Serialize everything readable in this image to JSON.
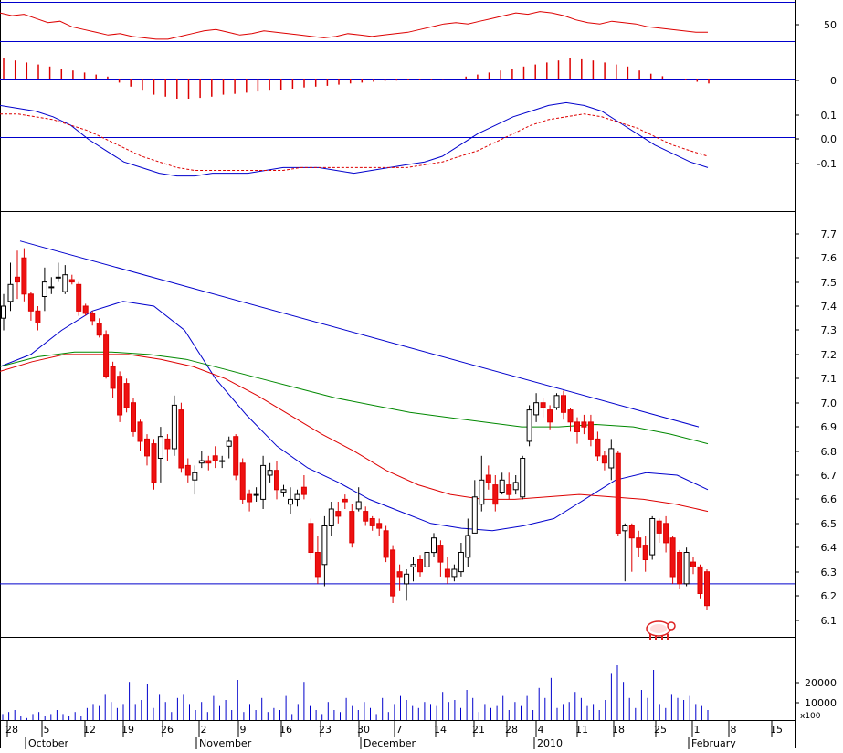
{
  "chart_data": {
    "type": "candlestick",
    "panels": {
      "rsi": {
        "ticks": [
          "50"
        ],
        "series": [
          {
            "values": [
              62,
              60,
              61,
              58,
              55,
              56,
              52,
              50,
              48,
              46,
              47,
              45,
              44,
              43,
              43,
              45,
              47,
              49,
              50,
              48,
              46,
              47,
              49,
              48,
              47,
              46,
              45,
              44,
              45,
              47,
              46,
              45,
              46,
              47,
              48,
              50,
              52,
              54,
              55,
              54,
              56,
              58,
              60,
              62,
              61,
              63,
              62,
              60,
              57,
              55,
              54,
              56,
              55,
              54,
              52,
              51,
              50,
              49,
              48,
              48
            ]
          }
        ]
      },
      "macd_histogram": {
        "ticks": [
          "0"
        ],
        "values": [
          0.05,
          0.045,
          0.04,
          0.035,
          0.03,
          0.025,
          0.02,
          0.015,
          0.01,
          0.005,
          -0.01,
          -0.02,
          -0.03,
          -0.04,
          -0.045,
          -0.05,
          -0.05,
          -0.048,
          -0.045,
          -0.04,
          -0.038,
          -0.035,
          -0.032,
          -0.03,
          -0.028,
          -0.025,
          -0.022,
          -0.02,
          -0.018,
          -0.015,
          -0.012,
          -0.01,
          -0.008,
          -0.006,
          -0.005,
          -0.004,
          -0.003,
          -0.002,
          -0.001,
          0.0,
          0.005,
          0.01,
          0.015,
          0.02,
          0.025,
          0.03,
          0.035,
          0.04,
          0.045,
          0.05,
          0.048,
          0.045,
          0.04,
          0.035,
          0.03,
          0.02,
          0.012,
          0.006,
          0.0,
          -0.004,
          -0.008,
          -0.012
        ]
      },
      "macd": {
        "ticks": [
          "0.1",
          "0.0",
          "-0.1"
        ],
        "series": [
          {
            "style": "solid",
            "color": "#0000cc",
            "values": [
              0.12,
              0.11,
              0.1,
              0.08,
              0.05,
              0.0,
              -0.04,
              -0.08,
              -0.1,
              -0.12,
              -0.13,
              -0.13,
              -0.12,
              -0.12,
              -0.12,
              -0.11,
              -0.1,
              -0.1,
              -0.1,
              -0.11,
              -0.12,
              -0.11,
              -0.1,
              -0.09,
              -0.08,
              -0.06,
              -0.02,
              0.02,
              0.05,
              0.08,
              0.1,
              0.12,
              0.13,
              0.12,
              0.1,
              0.06,
              0.02,
              -0.02,
              -0.05,
              -0.08,
              -0.1
            ]
          },
          {
            "style": "dashed",
            "color": "#dd0000",
            "values": [
              0.09,
              0.09,
              0.08,
              0.07,
              0.05,
              0.03,
              0.0,
              -0.03,
              -0.06,
              -0.08,
              -0.1,
              -0.11,
              -0.11,
              -0.11,
              -0.11,
              -0.11,
              -0.11,
              -0.1,
              -0.1,
              -0.1,
              -0.1,
              -0.1,
              -0.1,
              -0.1,
              -0.09,
              -0.08,
              -0.06,
              -0.04,
              -0.01,
              0.02,
              0.05,
              0.07,
              0.08,
              0.09,
              0.08,
              0.06,
              0.04,
              0.01,
              -0.02,
              -0.04,
              -0.06
            ]
          }
        ]
      },
      "price": {
        "ticks": [
          "7.7",
          "7.6",
          "7.5",
          "7.4",
          "7.3",
          "7.2",
          "7.1",
          "7.0",
          "6.9",
          "6.8",
          "6.7",
          "6.6",
          "6.5",
          "6.4",
          "6.3",
          "6.2",
          "6.1"
        ],
        "ylim": [
          6.03,
          7.79
        ],
        "candles": [
          [
            7.35,
            7.4,
            7.3,
            7.45
          ],
          [
            7.42,
            7.49,
            7.38,
            7.58
          ],
          [
            7.52,
            7.5,
            7.43,
            7.63
          ],
          [
            7.6,
            7.45,
            7.42,
            7.64
          ],
          [
            7.45,
            7.38,
            7.34,
            7.46
          ],
          [
            7.38,
            7.33,
            7.3,
            7.4
          ],
          [
            7.44,
            7.5,
            7.38,
            7.56
          ],
          [
            7.48,
            7.48,
            7.45,
            7.52
          ],
          [
            7.52,
            7.52,
            7.5,
            7.58
          ],
          [
            7.46,
            7.53,
            7.45,
            7.57
          ],
          [
            7.51,
            7.5,
            7.49,
            7.53
          ],
          [
            7.49,
            7.38,
            7.36,
            7.5
          ],
          [
            7.4,
            7.37,
            7.36,
            7.41
          ],
          [
            7.37,
            7.34,
            7.32,
            7.38
          ],
          [
            7.33,
            7.28,
            7.27,
            7.35
          ],
          [
            7.28,
            7.11,
            7.1,
            7.3
          ],
          [
            7.15,
            7.06,
            7.02,
            7.17
          ],
          [
            7.11,
            6.95,
            6.92,
            7.13
          ],
          [
            7.08,
            6.98,
            6.96,
            7.1
          ],
          [
            7.0,
            6.88,
            6.86,
            7.02
          ],
          [
            6.92,
            6.84,
            6.8,
            6.93
          ],
          [
            6.85,
            6.78,
            6.74,
            6.87
          ],
          [
            6.83,
            6.67,
            6.64,
            6.85
          ],
          [
            6.77,
            6.86,
            6.67,
            6.9
          ],
          [
            6.85,
            6.81,
            6.76,
            6.87
          ],
          [
            6.81,
            6.99,
            6.78,
            7.03
          ],
          [
            6.97,
            6.73,
            6.71,
            7.0
          ],
          [
            6.74,
            6.7,
            6.67,
            6.77
          ],
          [
            6.68,
            6.71,
            6.62,
            6.74
          ],
          [
            6.75,
            6.76,
            6.73,
            6.8
          ],
          [
            6.76,
            6.75,
            6.72,
            6.78
          ],
          [
            6.78,
            6.76,
            6.73,
            6.82
          ],
          [
            6.76,
            6.76,
            6.73,
            6.78
          ],
          [
            6.82,
            6.84,
            6.77,
            6.86
          ],
          [
            6.86,
            6.7,
            6.68,
            6.87
          ],
          [
            6.75,
            6.6,
            6.58,
            6.77
          ],
          [
            6.62,
            6.59,
            6.55,
            6.64
          ],
          [
            6.62,
            6.62,
            6.59,
            6.65
          ],
          [
            6.6,
            6.74,
            6.56,
            6.78
          ],
          [
            6.7,
            6.72,
            6.67,
            6.75
          ],
          [
            6.72,
            6.64,
            6.6,
            6.76
          ],
          [
            6.63,
            6.64,
            6.61,
            6.66
          ],
          [
            6.58,
            6.6,
            6.54,
            6.65
          ],
          [
            6.6,
            6.62,
            6.57,
            6.64
          ],
          [
            6.65,
            6.62,
            6.6,
            6.7
          ],
          [
            6.5,
            6.38,
            6.35,
            6.52
          ],
          [
            6.38,
            6.28,
            6.25,
            6.45
          ],
          [
            6.33,
            6.49,
            6.24,
            6.53
          ],
          [
            6.49,
            6.56,
            6.45,
            6.59
          ],
          [
            6.55,
            6.53,
            6.5,
            6.59
          ],
          [
            6.6,
            6.59,
            6.56,
            6.62
          ],
          [
            6.55,
            6.42,
            6.4,
            6.58
          ],
          [
            6.56,
            6.59,
            6.55,
            6.65
          ],
          [
            6.55,
            6.51,
            6.49,
            6.57
          ],
          [
            6.52,
            6.49,
            6.47,
            6.53
          ],
          [
            6.5,
            6.48,
            6.45,
            6.52
          ],
          [
            6.47,
            6.36,
            6.34,
            6.49
          ],
          [
            6.39,
            6.2,
            6.17,
            6.41
          ],
          [
            6.3,
            6.28,
            6.22,
            6.33
          ],
          [
            6.25,
            6.29,
            6.18,
            6.31
          ],
          [
            6.32,
            6.33,
            6.26,
            6.36
          ],
          [
            6.35,
            6.3,
            6.28,
            6.37
          ],
          [
            6.32,
            6.38,
            6.28,
            6.4
          ],
          [
            6.38,
            6.44,
            6.36,
            6.46
          ],
          [
            6.41,
            6.34,
            6.28,
            6.43
          ],
          [
            6.31,
            6.28,
            6.25,
            6.36
          ],
          [
            6.28,
            6.31,
            6.26,
            6.33
          ],
          [
            6.3,
            6.38,
            6.28,
            6.42
          ],
          [
            6.36,
            6.45,
            6.32,
            6.52
          ],
          [
            6.46,
            6.61,
            6.46,
            6.68
          ],
          [
            6.58,
            6.68,
            6.55,
            6.78
          ],
          [
            6.7,
            6.67,
            6.64,
            6.74
          ],
          [
            6.66,
            6.58,
            6.55,
            6.7
          ],
          [
            6.63,
            6.68,
            6.62,
            6.71
          ],
          [
            6.66,
            6.62,
            6.6,
            6.71
          ],
          [
            6.64,
            6.67,
            6.62,
            6.7
          ],
          [
            6.61,
            6.77,
            6.6,
            6.78
          ],
          [
            6.84,
            6.97,
            6.82,
            6.99
          ],
          [
            6.95,
            7.0,
            6.92,
            7.04
          ],
          [
            7.0,
            6.98,
            6.94,
            7.02
          ],
          [
            6.97,
            6.92,
            6.89,
            6.99
          ],
          [
            6.98,
            7.03,
            6.97,
            7.04
          ],
          [
            7.03,
            6.96,
            6.93,
            7.05
          ],
          [
            6.97,
            6.92,
            6.88,
            6.98
          ],
          [
            6.92,
            6.88,
            6.83,
            6.94
          ],
          [
            6.92,
            6.9,
            6.87,
            6.95
          ],
          [
            6.92,
            6.85,
            6.82,
            6.95
          ],
          [
            6.85,
            6.78,
            6.76,
            6.88
          ],
          [
            6.78,
            6.75,
            6.72,
            6.8
          ],
          [
            6.73,
            6.81,
            6.68,
            6.85
          ],
          [
            6.79,
            6.46,
            6.45,
            6.8
          ],
          [
            6.47,
            6.49,
            6.26,
            6.5
          ],
          [
            6.49,
            6.44,
            6.3,
            6.5
          ],
          [
            6.44,
            6.4,
            6.36,
            6.47
          ],
          [
            6.41,
            6.35,
            6.3,
            6.45
          ],
          [
            6.37,
            6.52,
            6.35,
            6.53
          ],
          [
            6.51,
            6.46,
            6.42,
            6.52
          ],
          [
            6.5,
            6.42,
            6.38,
            6.53
          ],
          [
            6.44,
            6.28,
            6.25,
            6.45
          ],
          [
            6.38,
            6.25,
            6.23,
            6.39
          ],
          [
            6.25,
            6.38,
            6.24,
            6.4
          ],
          [
            6.34,
            6.32,
            6.29,
            6.36
          ],
          [
            6.32,
            6.21,
            6.19,
            6.33
          ],
          [
            6.3,
            6.16,
            6.14,
            6.31
          ]
        ],
        "horizontal_level": 6.25,
        "trendline": [
          [
            7.67,
            0
          ],
          [
            6.9,
            1
          ]
        ],
        "moving_averages": [
          {
            "color": "#0000cc",
            "values": [
              7.15,
              7.2,
              7.3,
              7.38,
              7.42,
              7.4,
              7.3,
              7.1,
              6.95,
              6.82,
              6.73,
              6.67,
              6.6,
              6.55,
              6.5,
              6.48,
              6.47,
              6.49,
              6.52,
              6.6,
              6.68,
              6.71,
              6.7,
              6.64
            ]
          },
          {
            "color": "#dd0000",
            "values": [
              7.13,
              7.17,
              7.2,
              7.2,
              7.2,
              7.18,
              7.15,
              7.1,
              7.03,
              6.95,
              6.87,
              6.8,
              6.72,
              6.66,
              6.62,
              6.6,
              6.6,
              6.61,
              6.62,
              6.61,
              6.6,
              6.58,
              6.55
            ]
          },
          {
            "color": "#008800",
            "values": [
              7.15,
              7.19,
              7.21,
              7.21,
              7.2,
              7.18,
              7.14,
              7.1,
              7.06,
              7.02,
              6.99,
              6.96,
              6.94,
              6.92,
              6.9,
              6.9,
              6.91,
              6.9,
              6.87,
              6.83
            ]
          }
        ]
      },
      "volume": {
        "ticks": [
          "20000",
          "10000"
        ],
        "unit_label": "x100",
        "values": [
          3,
          4,
          5,
          2,
          1,
          3,
          4,
          2,
          3,
          5,
          3,
          2,
          4,
          2,
          6,
          8,
          7,
          13,
          9,
          6,
          8,
          19,
          8,
          10,
          18,
          6,
          13,
          9,
          4,
          11,
          13,
          8,
          5,
          9,
          4,
          12,
          7,
          10,
          5,
          20,
          4,
          8,
          5,
          11,
          4,
          6,
          5,
          12,
          3,
          8,
          19,
          7,
          5,
          3,
          9,
          5,
          4,
          11,
          7,
          5,
          9,
          6,
          3,
          11,
          4,
          8,
          12,
          10,
          7,
          6,
          9,
          8,
          7,
          14,
          9,
          10,
          6,
          15,
          11,
          4,
          8,
          6,
          7,
          12,
          5,
          9,
          7,
          12,
          5,
          16,
          11,
          21,
          6,
          8,
          9,
          14,
          11,
          7,
          8,
          5,
          10,
          23,
          28,
          19,
          11,
          6,
          15,
          11,
          25,
          8,
          6,
          13,
          11,
          10,
          12,
          8,
          7,
          5
        ]
      }
    },
    "x_tick_labels": [
      "28",
      "5",
      "12",
      "19",
      "26",
      "2",
      "9",
      "16",
      "23",
      "30",
      "7",
      "14",
      "21",
      "28",
      "4",
      "11",
      "18",
      "25",
      "1",
      "8",
      "15"
    ],
    "month_labels": [
      "October",
      "November",
      "December",
      "2010",
      "February"
    ]
  }
}
